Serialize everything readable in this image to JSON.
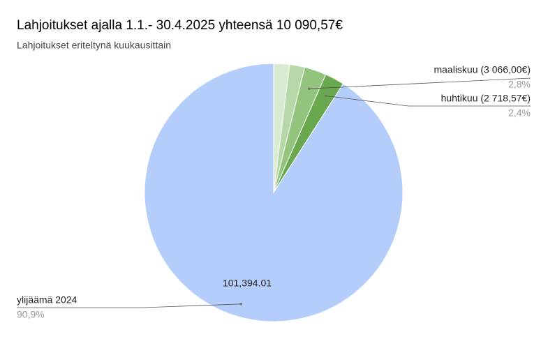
{
  "chart_data": {
    "type": "pie",
    "title": "Lahjoitukset ajalla 1.1.- 30.4.2025 yhteensä 10 090,57€",
    "subtitle": "Lahjoitukset eriteltynä kuukausittain",
    "categories": [
      null,
      null,
      "maaliskuu (3 066,00€)",
      "huhtikuu (2 718,57€)",
      "ylijäämä 2024"
    ],
    "values": [
      2210,
      2096,
      3066,
      2718.57,
      101394.01
    ],
    "value_labels": [
      null,
      null,
      null,
      null,
      "101,394.01"
    ],
    "percent_labels": [
      null,
      null,
      "2,8%",
      "2,4%",
      "90,9%"
    ],
    "colors": [
      "#d9ead3",
      "#b6d7a8",
      "#93c47d",
      "#6aa84f",
      "#b5cdfb"
    ]
  }
}
